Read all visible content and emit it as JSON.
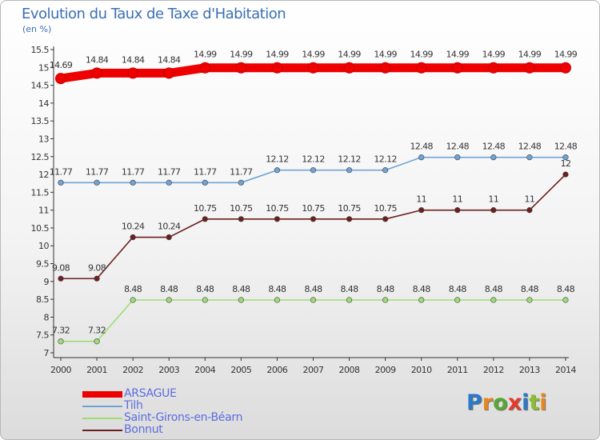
{
  "title": "Evolution du Taux de Taxe d'Habitation",
  "unit": "(en %)",
  "brand": "Proxiti",
  "chart_data": {
    "type": "line",
    "title": "Evolution du Taux de Taxe d'Habitation",
    "ylabel": "(en %)",
    "xlabel": "",
    "ylim": [
      7,
      15.5
    ],
    "ytick_step": 0.5,
    "yticks": [
      "7",
      "7.5",
      "8",
      "8.5",
      "9",
      "9.5",
      "10",
      "10.5",
      "11",
      "11.5",
      "12",
      "12.5",
      "13",
      "13.5",
      "14",
      "14.5",
      "15",
      "15.5"
    ],
    "grid": false,
    "legend_position": "bottom-left",
    "x": [
      "2000",
      "2001",
      "2002",
      "2003",
      "2004",
      "2005",
      "2006",
      "2007",
      "2008",
      "2009",
      "2010",
      "2011",
      "2012",
      "2013",
      "2014"
    ],
    "series": [
      {
        "name": "ARSAGUE",
        "color": "#ee0000",
        "values": [
          14.69,
          14.84,
          14.84,
          14.84,
          14.99,
          14.99,
          14.99,
          14.99,
          14.99,
          14.99,
          14.99,
          14.99,
          14.99,
          14.99,
          14.99
        ],
        "labels": [
          "14.69",
          "14.84",
          "14.84",
          "14.84",
          "14.99",
          "14.99",
          "14.99",
          "14.99",
          "14.99",
          "14.99",
          "14.99",
          "14.99",
          "14.99",
          "14.99",
          "14.99"
        ]
      },
      {
        "name": "Tilh",
        "color": "#6fa3d6",
        "values": [
          11.77,
          11.77,
          11.77,
          11.77,
          11.77,
          11.77,
          12.12,
          12.12,
          12.12,
          12.12,
          12.48,
          12.48,
          12.48,
          12.48,
          12.48
        ],
        "labels": [
          "11.77",
          "11.77",
          "11.77",
          "11.77",
          "11.77",
          "11.77",
          "12.12",
          "12.12",
          "12.12",
          "12.12",
          "12.48",
          "12.48",
          "12.48",
          "12.48",
          "12.48"
        ]
      },
      {
        "name": "Saint-Girons-en-Béarn",
        "color": "#9edc76",
        "values": [
          7.32,
          7.32,
          8.48,
          8.48,
          8.48,
          8.48,
          8.48,
          8.48,
          8.48,
          8.48,
          8.48,
          8.48,
          8.48,
          8.48,
          8.48
        ],
        "labels": [
          "7.32",
          "7.32",
          "8.48",
          "8.48",
          "8.48",
          "8.48",
          "8.48",
          "8.48",
          "8.48",
          "8.48",
          "8.48",
          "8.48",
          "8.48",
          "8.48",
          "8.48"
        ]
      },
      {
        "name": "Bonnut",
        "color": "#6b1f1f",
        "values": [
          9.08,
          9.08,
          10.24,
          10.24,
          10.75,
          10.75,
          10.75,
          10.75,
          10.75,
          10.75,
          11,
          11,
          11,
          11,
          12
        ],
        "labels": [
          "9.08",
          "9.08",
          "10.24",
          "10.24",
          "10.75",
          "10.75",
          "10.75",
          "10.75",
          "10.75",
          "10.75",
          "11",
          "11",
          "11",
          "11",
          "12"
        ]
      }
    ]
  }
}
